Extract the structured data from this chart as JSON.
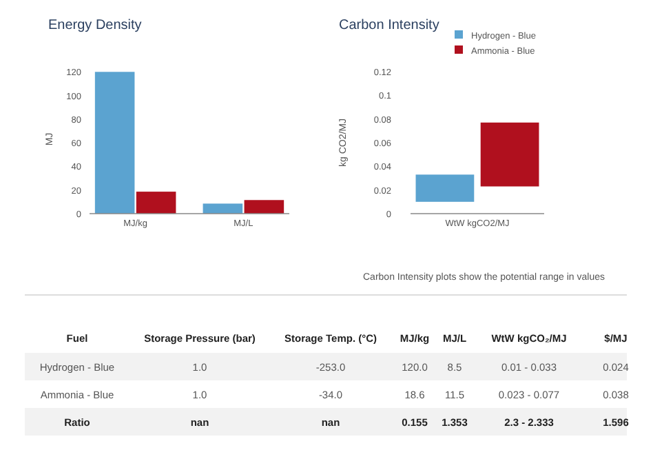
{
  "chart_data": [
    {
      "type": "bar",
      "title": "Energy Density",
      "ylabel": "MJ",
      "categories": [
        "MJ/kg",
        "MJ/L"
      ],
      "series": [
        {
          "color": "#5ba3d0",
          "values": [
            120,
            8.5
          ]
        },
        {
          "color": "#b0101e",
          "values": [
            18.6,
            11.5
          ]
        }
      ],
      "ylim": [
        0,
        126
      ],
      "yticks": [
        0,
        20,
        40,
        60,
        80,
        100,
        120
      ]
    },
    {
      "type": "bar",
      "title": "Carbon Intensity",
      "ylabel": "kg CO2/MJ",
      "xlabel": "WtW kgCO2/MJ",
      "categories": [
        null,
        null
      ],
      "series": [
        {
          "name": "Hydrogen - Blue",
          "color": "#5ba3d0",
          "values": [
            0.023,
            null
          ],
          "base": [
            0.01,
            null
          ]
        },
        {
          "name": "Ammonia - Blue",
          "color": "#b0101e",
          "values": [
            null,
            0.054
          ],
          "base": [
            null,
            0.023
          ]
        }
      ],
      "ylim": [
        0,
        0.12
      ],
      "yticks": [
        0,
        0.02,
        0.04,
        0.06,
        0.08,
        0.1,
        0.12
      ],
      "legend": "top right"
    },
    {
      "type": "other",
      "annotations": [
        "Carbon Intensity plots show the potential range in values"
      ],
      "categories": [
        "Fuel",
        "Storage Pressure (bar)",
        "Storage Temp. (°C)",
        "MJ/kg",
        "MJ/L",
        "WtW kgCO₂/MJ",
        "$/MJ"
      ],
      "y_categories": [
        "Hydrogen - Blue",
        "Ammonia - Blue",
        "Ratio"
      ],
      "cell_labels": [
        [
          "1.0",
          "-253.0",
          "120.0",
          "8.5",
          "0.01 - 0.033",
          "0.024"
        ],
        [
          "1.0",
          "-34.0",
          "18.6",
          "11.5",
          "0.023 - 0.077",
          "0.038"
        ],
        [
          "nan",
          "nan",
          "0.155",
          "1.353",
          "2.3 - 2.333",
          "1.596"
        ]
      ]
    }
  ]
}
